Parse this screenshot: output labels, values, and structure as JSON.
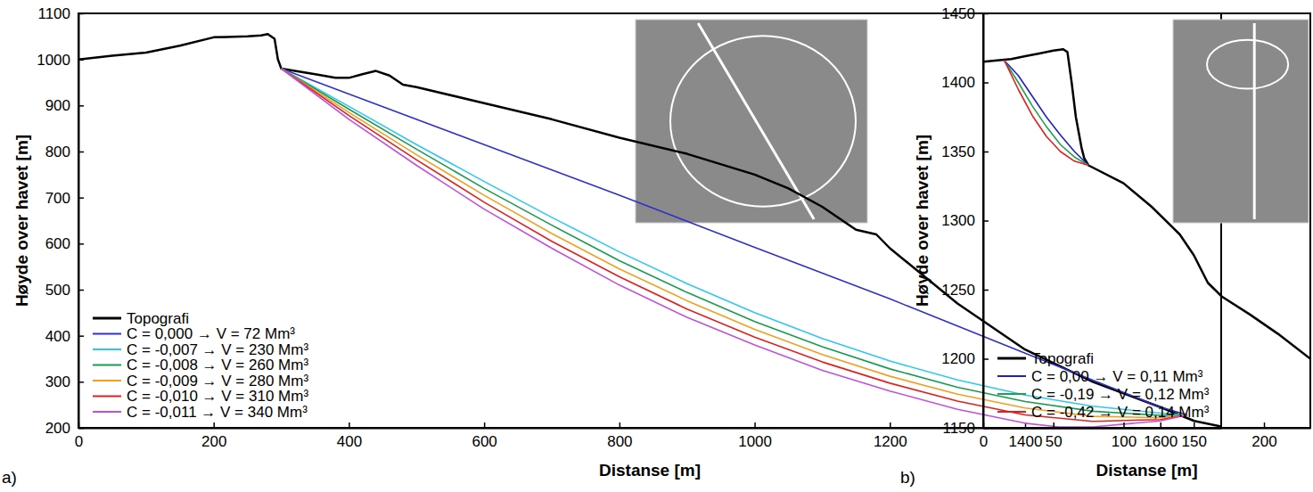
{
  "chart_data": [
    {
      "type": "line",
      "panel_label": "a)",
      "xlabel": "Distanse [m]",
      "ylabel": "Høyde over havet [m]",
      "xlim": [
        0,
        1690
      ],
      "ylim": [
        200,
        1100
      ],
      "xticks": [
        0,
        200,
        400,
        600,
        800,
        1000,
        1200,
        1400,
        1600
      ],
      "yticks": [
        200,
        300,
        400,
        500,
        600,
        700,
        800,
        900,
        1000,
        1100
      ],
      "legend": "lower left",
      "series": [
        {
          "name": "Topografi",
          "color": "#000000",
          "x": [
            0,
            50,
            100,
            150,
            200,
            250,
            270,
            280,
            290,
            295,
            300,
            350,
            380,
            400,
            420,
            440,
            460,
            480,
            500,
            600,
            700,
            800,
            900,
            1000,
            1050,
            1100,
            1150,
            1180,
            1200,
            1300,
            1400,
            1500,
            1600,
            1650,
            1690
          ],
          "values": [
            1000,
            1008,
            1015,
            1030,
            1048,
            1050,
            1052,
            1055,
            1045,
            1000,
            980,
            968,
            960,
            960,
            968,
            975,
            965,
            945,
            940,
            905,
            870,
            830,
            795,
            750,
            720,
            680,
            630,
            620,
            590,
            470,
            370,
            300,
            245,
            215,
            203
          ]
        },
        {
          "name": "C = 0,000 → V = 72 Mm³",
          "color": "#3030c8",
          "x": [
            300,
            400,
            600,
            800,
            1000,
            1200,
            1400,
            1600,
            1640
          ],
          "values": [
            980,
            925,
            815,
            705,
            592,
            480,
            362,
            245,
            228
          ]
        },
        {
          "name": "C = -0,007 → V = 230 Mm³",
          "color": "#30c8f0",
          "x": [
            300,
            400,
            500,
            600,
            700,
            800,
            900,
            1000,
            1100,
            1200,
            1300,
            1400,
            1500,
            1600,
            1640
          ],
          "values": [
            980,
            898,
            815,
            735,
            657,
            582,
            513,
            450,
            394,
            345,
            304,
            271,
            247,
            232,
            228
          ]
        },
        {
          "name": "C = -0,008 → V = 260 Mm³",
          "color": "#1a9a50",
          "x": [
            300,
            400,
            500,
            600,
            700,
            800,
            900,
            1000,
            1100,
            1200,
            1300,
            1400,
            1500,
            1600,
            1640
          ],
          "values": [
            980,
            892,
            805,
            720,
            640,
            563,
            494,
            431,
            376,
            328,
            288,
            257,
            236,
            227,
            228
          ]
        },
        {
          "name": "C = -0,009 → V = 280 Mm³",
          "color": "#f0a020",
          "x": [
            300,
            400,
            500,
            600,
            700,
            800,
            900,
            1000,
            1100,
            1200,
            1300,
            1400,
            1500,
            1600,
            1640
          ],
          "values": [
            980,
            885,
            793,
            705,
            622,
            545,
            476,
            414,
            359,
            312,
            273,
            243,
            225,
            222,
            228
          ]
        },
        {
          "name": "C = -0,010 → V = 310 Mm³",
          "color": "#e02020",
          "x": [
            300,
            400,
            500,
            600,
            700,
            800,
            900,
            1000,
            1100,
            1200,
            1300,
            1400,
            1500,
            1600,
            1640
          ],
          "values": [
            980,
            878,
            782,
            690,
            605,
            528,
            458,
            397,
            343,
            297,
            258,
            228,
            214,
            218,
            228
          ]
        },
        {
          "name": "C = -0,011 → V = 340 Mm³",
          "color": "#c050e0",
          "x": [
            300,
            400,
            500,
            600,
            700,
            800,
            900,
            1000,
            1100,
            1200,
            1300,
            1400,
            1450,
            1500,
            1600,
            1640
          ],
          "values": [
            980,
            870,
            770,
            675,
            590,
            510,
            440,
            380,
            325,
            280,
            240,
            210,
            202,
            202,
            215,
            228
          ]
        }
      ]
    },
    {
      "type": "line",
      "panel_label": "b)",
      "xlabel": "Distanse [m]",
      "ylabel": "Høyde over havet [m]",
      "xlim": [
        0,
        233
      ],
      "ylim": [
        1150,
        1450
      ],
      "xticks": [
        0,
        50,
        100,
        150,
        200
      ],
      "yticks": [
        1150,
        1200,
        1250,
        1300,
        1350,
        1400,
        1450
      ],
      "legend": "lower left",
      "series": [
        {
          "name": "Topografi",
          "color": "#000000",
          "x": [
            0,
            10,
            20,
            30,
            40,
            50,
            57,
            60,
            63,
            66,
            70,
            72,
            75,
            100,
            120,
            140,
            150,
            160,
            170,
            190,
            210,
            233
          ],
          "values": [
            1415,
            1416,
            1417,
            1419,
            1421,
            1423,
            1424,
            1422,
            1400,
            1375,
            1353,
            1345,
            1340,
            1327,
            1310,
            1290,
            1275,
            1255,
            1245,
            1232,
            1218,
            1200
          ]
        },
        {
          "name": "C = 0,00 → V = 0,11 Mm³",
          "color": "#2020c0",
          "x": [
            15,
            25,
            35,
            45,
            55,
            65,
            75
          ],
          "values": [
            1416,
            1405,
            1390,
            1375,
            1362,
            1350,
            1340
          ]
        },
        {
          "name": "C = -0,19 → V = 0,12 Mm³",
          "color": "#20a050",
          "x": [
            15,
            25,
            35,
            45,
            55,
            65,
            75
          ],
          "values": [
            1416,
            1400,
            1383,
            1368,
            1355,
            1346,
            1340
          ]
        },
        {
          "name": "C = -0,42 → V = 0,14 Mm³",
          "color": "#e02020",
          "x": [
            15,
            25,
            35,
            45,
            55,
            65,
            75
          ],
          "values": [
            1416,
            1395,
            1376,
            1361,
            1350,
            1343,
            1340
          ]
        }
      ]
    }
  ]
}
